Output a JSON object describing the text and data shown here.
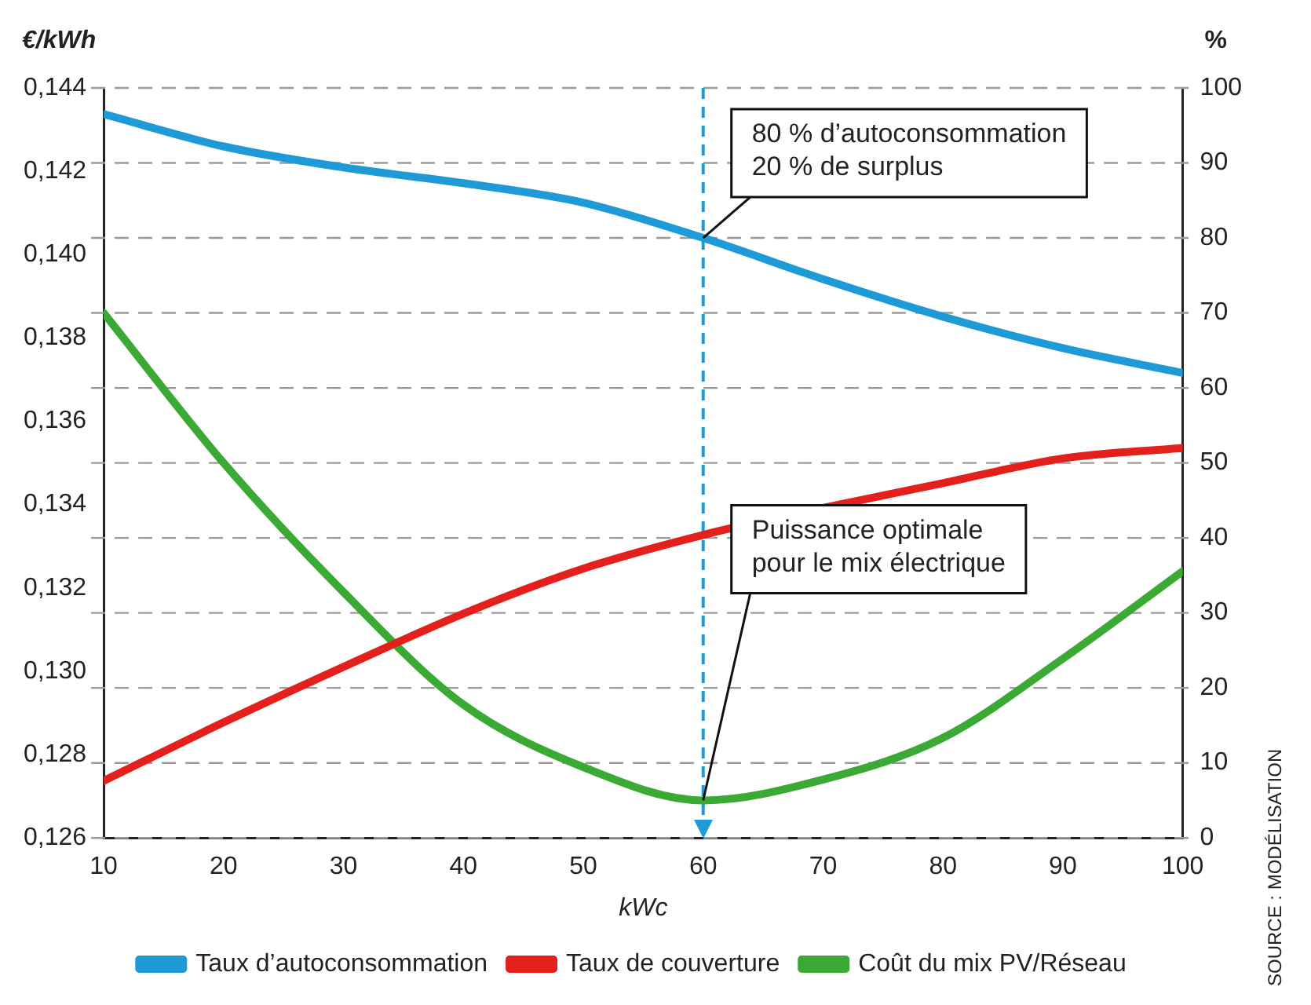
{
  "chart_data": {
    "type": "line",
    "xlabel": "kWc",
    "ylabel": "€/kWh",
    "y2label": "%",
    "x": [
      10,
      20,
      30,
      40,
      50,
      60,
      70,
      80,
      90,
      100
    ],
    "xlim": [
      10,
      100
    ],
    "xticks": [
      10,
      20,
      30,
      40,
      50,
      60,
      70,
      80,
      90,
      100
    ],
    "ylim": [
      0.126,
      0.144
    ],
    "yticks": [
      {
        "value": 0.126,
        "label": "0,126"
      },
      {
        "value": 0.128,
        "label": "0,128"
      },
      {
        "value": 0.13,
        "label": "0,130"
      },
      {
        "value": 0.132,
        "label": "0,132"
      },
      {
        "value": 0.134,
        "label": "0,134"
      },
      {
        "value": 0.136,
        "label": "0,136"
      },
      {
        "value": 0.138,
        "label": "0,138"
      },
      {
        "value": 0.14,
        "label": "0,140"
      },
      {
        "value": 0.142,
        "label": "0,142"
      },
      {
        "value": 0.144,
        "label": "0,144"
      }
    ],
    "y2lim": [
      0,
      100
    ],
    "y2ticks": [
      0,
      10,
      20,
      30,
      40,
      50,
      60,
      70,
      80,
      90,
      100
    ],
    "series": [
      {
        "name": "Taux d’autoconsommation",
        "color": "#1e9ad6",
        "axis": "y2",
        "values": [
          96.5,
          92.2,
          89.4,
          87.3,
          84.7,
          80,
          74.5,
          69.5,
          65.3,
          62
        ]
      },
      {
        "name": "Taux de couverture",
        "color": "#e3201b",
        "axis": "y2",
        "values": [
          7.6,
          15.4,
          22.8,
          29.9,
          35.9,
          40.4,
          44,
          47.3,
          50.6,
          52
        ]
      },
      {
        "name": "Coût du mix PV/Réseau",
        "color": "#3aaa35",
        "values": [
          0.1386,
          0.135,
          0.1319,
          0.1292,
          0.1277,
          0.1269,
          0.1274,
          0.1284,
          0.1303,
          0.1324
        ]
      }
    ],
    "ref_lines": [
      {
        "axis": "x",
        "value": 60,
        "color": "#1e9ad6",
        "line_style": "dashed"
      }
    ],
    "annotations": [
      {
        "text": "80 % d’autoconsommation\n20 % de surplus",
        "x": 60,
        "y": 0.1404
      },
      {
        "text": "Puissance optimale\npour le mix électrique",
        "x": 60,
        "y": 0.1269
      },
      "SOURCE : MODÉLISATION"
    ],
    "grid": "y",
    "legend": "bottom",
    "marker": "none",
    "line_style": "solid"
  }
}
